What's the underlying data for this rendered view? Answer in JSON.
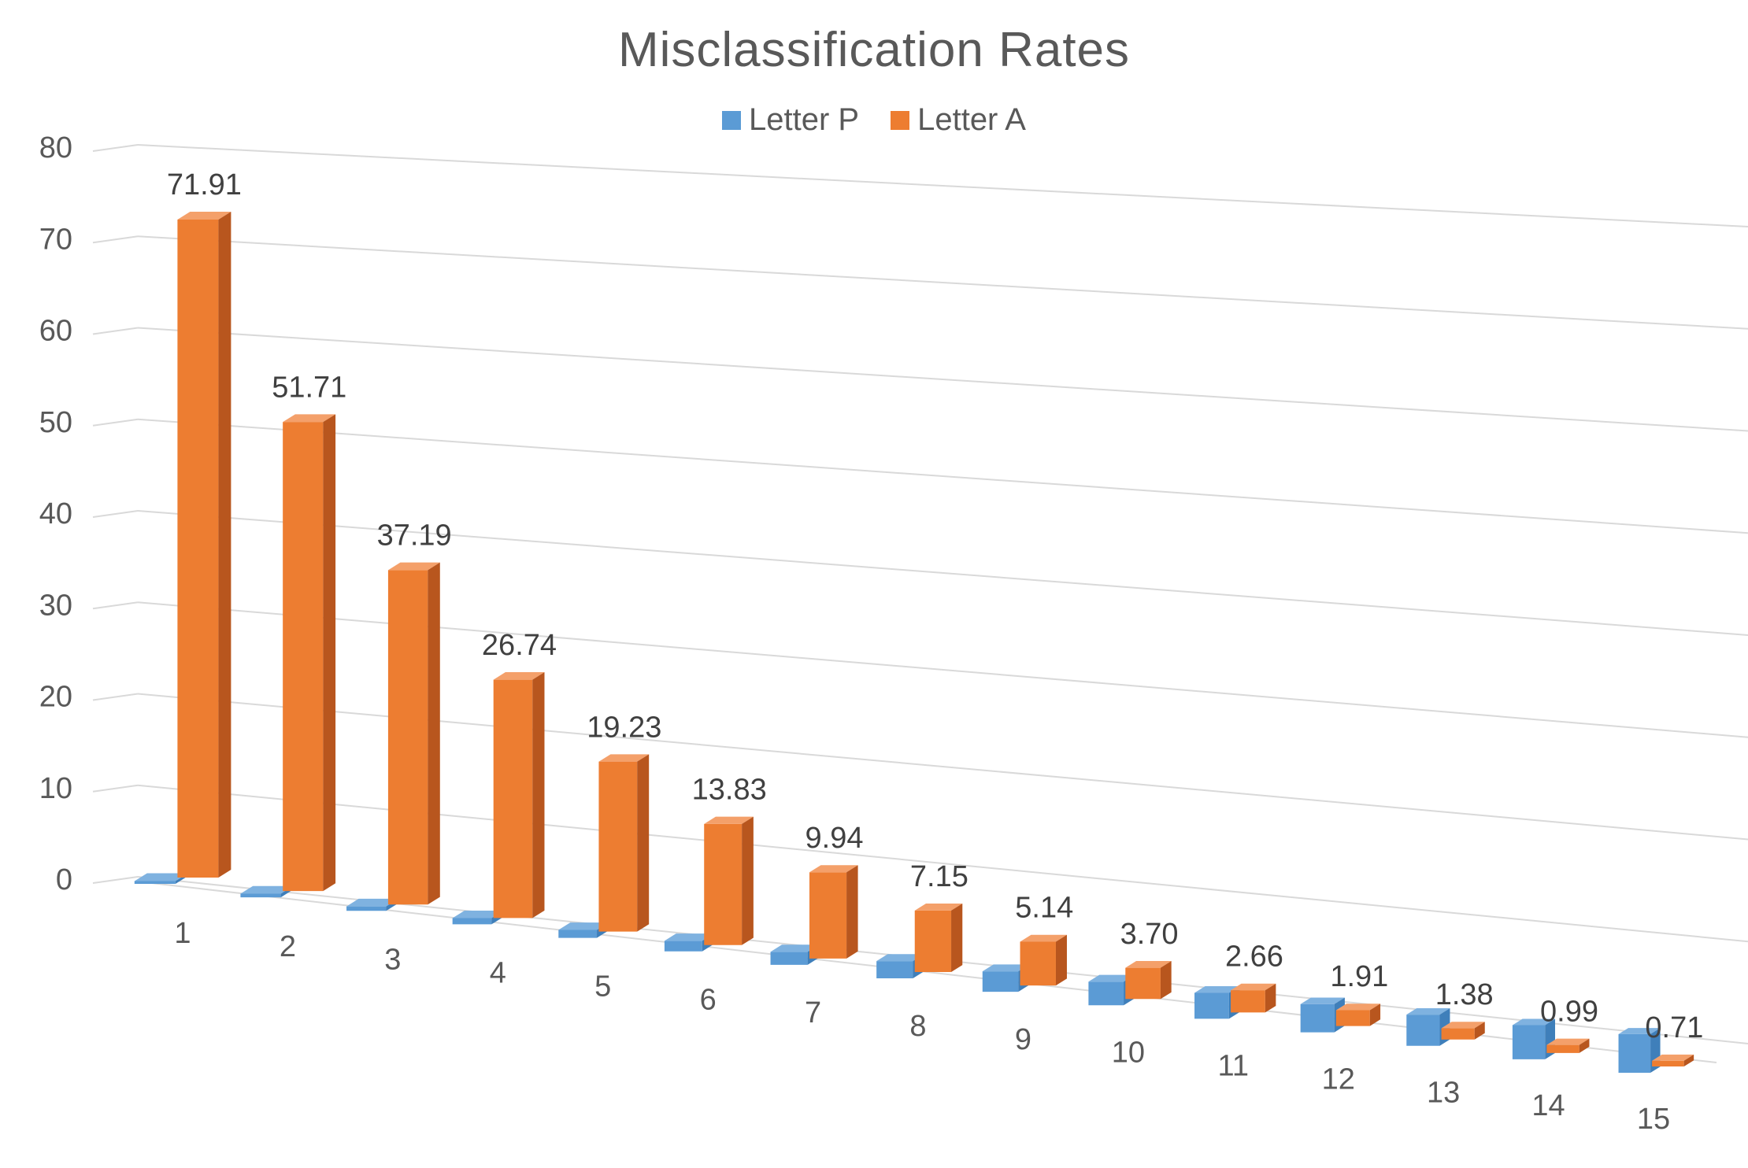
{
  "chart_data": {
    "type": "bar",
    "title": "Misclassification Rates",
    "xlabel": "",
    "ylabel": "",
    "ylim": [
      0,
      80
    ],
    "yticks": [
      "0",
      "10",
      "20",
      "30",
      "40",
      "50",
      "60",
      "70",
      "80"
    ],
    "categories": [
      "1",
      "2",
      "3",
      "4",
      "5",
      "6",
      "7",
      "8",
      "9",
      "10",
      "11",
      "12",
      "13",
      "14",
      "15"
    ],
    "series": [
      {
        "name": "Letter P",
        "color": "#5B9BD5",
        "values": [
          0.3,
          0.4,
          0.5,
          0.7,
          0.9,
          1.2,
          1.5,
          2.0,
          2.4,
          2.8,
          3.1,
          3.4,
          3.8,
          4.2,
          4.8
        ]
      },
      {
        "name": "Letter A",
        "color": "#ED7D31",
        "values": [
          71.91,
          51.71,
          37.19,
          26.74,
          19.23,
          13.83,
          9.94,
          7.15,
          5.14,
          3.7,
          2.66,
          1.91,
          1.38,
          0.99,
          0.71
        ],
        "labels": [
          "71.91",
          "51.71",
          "37.19",
          "26.74",
          "19.23",
          "13.83",
          "9.94",
          "7.15",
          "5.14",
          "3.70",
          "2.66",
          "1.91",
          "1.38",
          "0.99",
          "0.71"
        ]
      }
    ],
    "legend_position": "top-center",
    "grid": true
  }
}
